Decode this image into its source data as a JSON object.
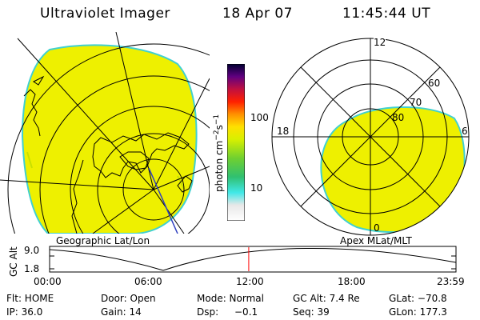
{
  "header": {
    "title": "Ultraviolet Imager",
    "date": "18 Apr 07",
    "time": "11:45:44 UT"
  },
  "colorbar": {
    "unit_label": "photon cm",
    "unit_exp1": "−2",
    "unit_s": "s",
    "unit_exp2": "−1",
    "tick_100": "100",
    "tick_10": "10"
  },
  "geo_panel": {
    "label": "Geographic Lat/Lon"
  },
  "polar_panel": {
    "label": "Apex MLat/MLT",
    "mlt_top": "12",
    "mlt_left": "18",
    "mlt_right": "6",
    "mlt_bottom": "0",
    "lat_60": "60",
    "lat_70": "70",
    "lat_80": "80"
  },
  "orbit_plot": {
    "ylabel": "GC Alt",
    "y_top": "9.0",
    "y_bottom": "1.8",
    "x_ticks": [
      "00:00",
      "06:00",
      "12:00",
      "18:00",
      "23:59"
    ],
    "current_time_fraction": 0.49
  },
  "status": {
    "flt": "Flt: HOME",
    "ip": "IP: 36.0",
    "door": "Door: Open",
    "gain": "Gain: 14",
    "mode": "Mode: Normal",
    "dsp_label": "Dsp:",
    "dsp_value": "−0.1",
    "gc_alt": "GC Alt: 7.4 Re",
    "seq": "Seq: 39",
    "glat": "GLat: −70.8",
    "glon": "GLon: 177.3"
  },
  "colors": {
    "emission": "#eef000",
    "emission_edge": "#40d0d0",
    "current_time_marker": "#ff0000"
  }
}
